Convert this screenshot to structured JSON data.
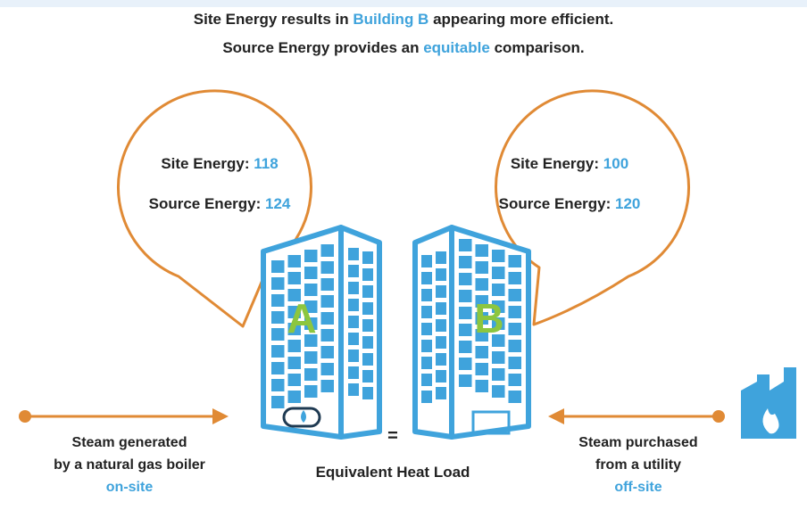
{
  "header": {
    "line1": {
      "before": "Site Energy results in",
      "highlight": "Building B",
      "after": "appearing more efficient."
    },
    "line2": {
      "before": "Source Energy provides an",
      "highlight": "equitable",
      "after": "comparison."
    }
  },
  "buildings": [
    {
      "label": "A",
      "site_label": "Site Energy:",
      "site_value": 118,
      "source_label": "Source Energy:",
      "source_value": 124
    },
    {
      "label": "B",
      "site_label": "Site Energy:",
      "site_value": 100,
      "source_label": "Source Energy:",
      "source_value": 120
    }
  ],
  "left_note": {
    "lines": [
      "Steam generated",
      "by a natural gas boiler"
    ],
    "highlight": "on-site"
  },
  "right_note": {
    "lines": [
      "Steam purchased",
      "from a utility"
    ],
    "highlight": "off-site"
  },
  "center": {
    "symbol": "=",
    "label": "Equivalent Heat Load"
  }
}
